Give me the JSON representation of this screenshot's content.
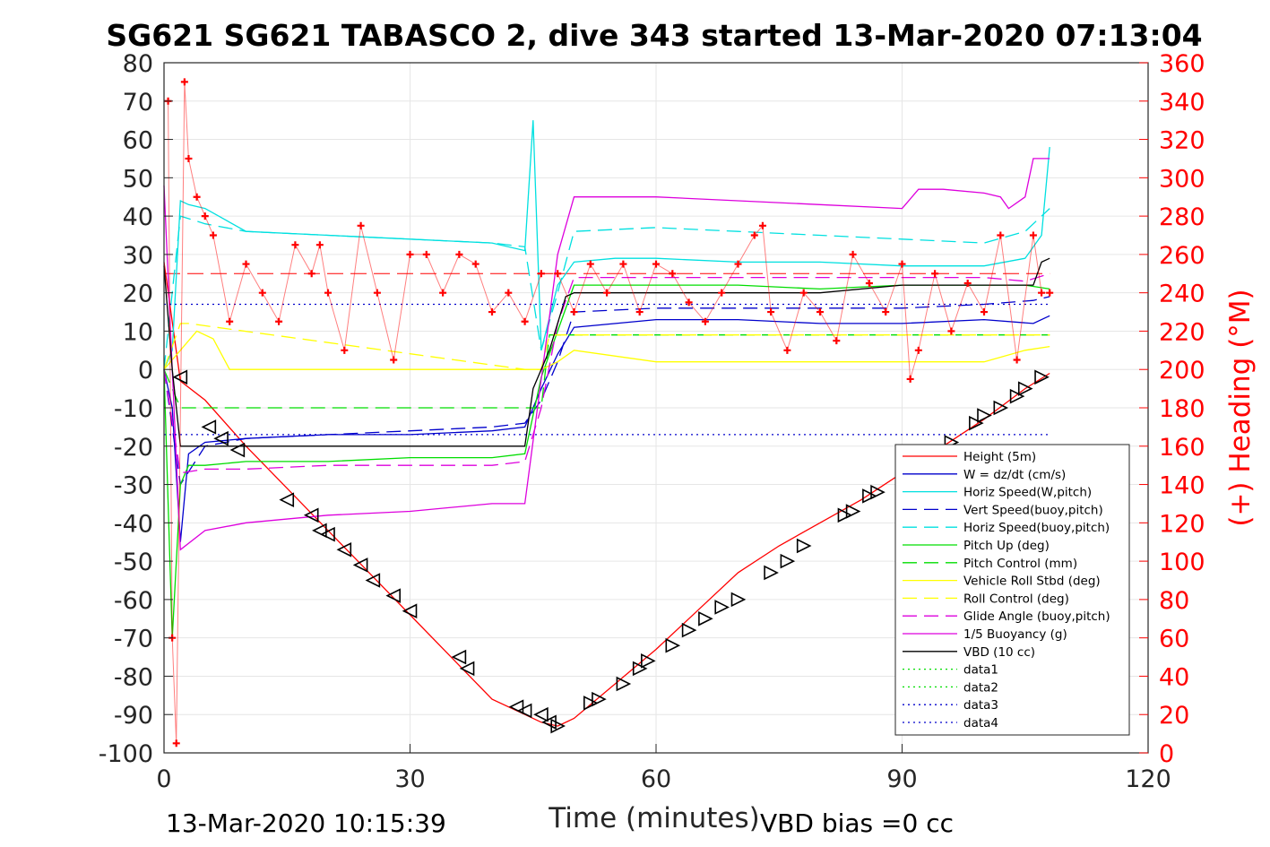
{
  "title": "SG621 SG621 TABASCO 2, dive 343 started 13-Mar-2020 07:13:04",
  "footer": {
    "timestamp": "13-Mar-2020 10:15:39",
    "vbd_bias": "VBD bias =0 cc"
  },
  "colors": {
    "axis": "#262626",
    "grid": "#e6e6e6",
    "heading": "#ff0000"
  },
  "chart_data": {
    "type": "line",
    "xlabel": "Time (minutes)",
    "ylabel": "",
    "y2label": "(+) Heading (°M)",
    "xlim": [
      0,
      120
    ],
    "ylim": [
      -100,
      80
    ],
    "y2lim": [
      0,
      360
    ],
    "xticks": [
      0,
      30,
      60,
      90,
      120
    ],
    "yticks": [
      -100,
      -90,
      -80,
      -70,
      -60,
      -50,
      -40,
      -30,
      -20,
      -10,
      0,
      10,
      20,
      30,
      40,
      50,
      60,
      70,
      80
    ],
    "y2ticks": [
      0,
      20,
      40,
      60,
      80,
      100,
      120,
      140,
      160,
      180,
      200,
      220,
      240,
      260,
      280,
      300,
      320,
      340,
      360
    ],
    "grid": true,
    "legend_position": "bottom-right",
    "series": [
      {
        "name": "Height (5m)",
        "color": "#ff0000",
        "style": "solid",
        "x": [
          0,
          2,
          5,
          10,
          15,
          20,
          25,
          30,
          35,
          40,
          44,
          46,
          48,
          50,
          55,
          60,
          65,
          70,
          75,
          80,
          85,
          90,
          95,
          100,
          105,
          108
        ],
        "y": [
          28,
          -3,
          -8,
          -20,
          -31,
          -42,
          -53,
          -64,
          -75,
          -86,
          -90,
          -92,
          -93,
          -91,
          -82,
          -73,
          -63,
          -53,
          -46,
          -40,
          -34,
          -27,
          -20,
          -13,
          -5,
          -1
        ]
      },
      {
        "name": "W = dz/dt (cm/s)",
        "color": "#0000cc",
        "style": "solid",
        "x": [
          0,
          1,
          2,
          3,
          5,
          10,
          20,
          30,
          40,
          44,
          46,
          48,
          50,
          60,
          70,
          80,
          90,
          100,
          106,
          108
        ],
        "y": [
          0,
          -10,
          -45,
          -22,
          -19,
          -18,
          -17,
          -17,
          -16,
          -15,
          -5,
          4,
          11,
          13,
          13,
          12,
          12,
          13,
          12,
          14
        ]
      },
      {
        "name": "Horiz Speed(W,pitch)",
        "color": "#00e0e0",
        "style": "solid",
        "x": [
          0,
          1,
          2,
          3,
          5,
          10,
          20,
          30,
          40,
          44,
          45,
          46,
          48,
          50,
          55,
          60,
          70,
          80,
          90,
          100,
          105,
          107,
          108
        ],
        "y": [
          0,
          5,
          44,
          43,
          42,
          36,
          35,
          34,
          33,
          31,
          65,
          5,
          22,
          28,
          29,
          29,
          28,
          28,
          27,
          27,
          29,
          35,
          58
        ]
      },
      {
        "name": "Vert Speed(buoy,pitch)",
        "color": "#0000cc",
        "style": "dashed",
        "x": [
          0,
          2,
          5,
          10,
          20,
          30,
          40,
          44,
          46,
          48,
          50,
          60,
          70,
          80,
          90,
          100,
          106,
          108
        ],
        "y": [
          0,
          -30,
          -20,
          -18,
          -17,
          -16,
          -15,
          -14,
          -8,
          2,
          15,
          16,
          16,
          16,
          16,
          17,
          18,
          19
        ]
      },
      {
        "name": "Horiz Speed(buoy,pitch)",
        "color": "#00e0e0",
        "style": "dashed",
        "x": [
          0,
          2,
          5,
          10,
          20,
          30,
          40,
          44,
          46,
          48,
          50,
          60,
          70,
          80,
          90,
          100,
          105,
          108
        ],
        "y": [
          0,
          40,
          38,
          36,
          35,
          34,
          33,
          32,
          5,
          20,
          36,
          37,
          36,
          35,
          34,
          33,
          36,
          42
        ]
      },
      {
        "name": "Pitch Up (deg)",
        "color": "#00dd00",
        "style": "solid",
        "x": [
          0,
          1,
          2,
          3,
          5,
          10,
          20,
          30,
          40,
          44,
          46,
          48,
          50,
          60,
          70,
          80,
          90,
          100,
          105,
          108
        ],
        "y": [
          0,
          -70,
          -30,
          -25,
          -25,
          -24,
          -24,
          -23,
          -23,
          -22,
          -2,
          10,
          22,
          22,
          22,
          21,
          22,
          22,
          22,
          21
        ]
      },
      {
        "name": "Pitch Control (mm)",
        "color": "#00dd00",
        "style": "dashed",
        "x": [
          0,
          2,
          3,
          44,
          46,
          47,
          108
        ],
        "y": [
          0,
          -10,
          -10,
          -10,
          -10,
          9,
          9
        ]
      },
      {
        "name": "Vehicle Roll Stbd (deg)",
        "color": "#ffff00",
        "style": "solid",
        "x": [
          0,
          2,
          4,
          6,
          8,
          10,
          20,
          30,
          40,
          44,
          46,
          48,
          50,
          60,
          70,
          80,
          90,
          100,
          105,
          108
        ],
        "y": [
          0,
          5,
          10,
          8,
          0,
          0,
          0,
          0,
          0,
          0,
          0,
          2,
          5,
          2,
          2,
          2,
          2,
          2,
          5,
          6
        ]
      },
      {
        "name": "Roll Control (deg)",
        "color": "#ffff00",
        "style": "dashed",
        "x": [
          0,
          2,
          3,
          44,
          46,
          47,
          108
        ],
        "y": [
          0,
          12,
          12,
          0,
          0,
          9,
          9
        ]
      },
      {
        "name": "Glide Angle (buoy,pitch)",
        "color": "#dd00dd",
        "style": "dashed",
        "x": [
          0,
          2,
          5,
          10,
          20,
          30,
          40,
          44,
          46,
          48,
          50,
          60,
          70,
          80,
          90,
          100,
          105,
          108
        ],
        "y": [
          0,
          -27,
          -26,
          -26,
          -25,
          -25,
          -25,
          -24,
          -10,
          12,
          24,
          24,
          24,
          24,
          24,
          24,
          23,
          25
        ]
      },
      {
        "name": "1/5 Buoyancy (g)",
        "color": "#dd00dd",
        "style": "solid",
        "x": [
          0,
          1,
          2,
          5,
          10,
          20,
          30,
          40,
          44,
          48,
          50,
          55,
          60,
          70,
          80,
          90,
          92,
          95,
          100,
          102,
          103,
          105,
          106,
          108
        ],
        "y": [
          48,
          0,
          -47,
          -42,
          -40,
          -38,
          -37,
          -35,
          -35,
          30,
          45,
          45,
          45,
          44,
          43,
          42,
          47,
          47,
          46,
          45,
          42,
          45,
          55,
          55
        ]
      },
      {
        "name": "VBD (10 cc)",
        "color": "#000000",
        "style": "solid",
        "x": [
          0,
          1,
          2,
          3,
          44,
          45,
          47,
          49,
          50,
          60,
          80,
          90,
          100,
          106,
          107,
          108
        ],
        "y": [
          27,
          0,
          -20,
          -20,
          -20,
          -5,
          5,
          19,
          20,
          20,
          20,
          22,
          22,
          22,
          28,
          29
        ]
      },
      {
        "name": "data1",
        "color": "#00dd00",
        "style": "dotted",
        "x": [],
        "y": []
      },
      {
        "name": "data2",
        "color": "#00dd00",
        "style": "dotted",
        "x": [],
        "y": []
      },
      {
        "name": "data3",
        "color": "#0000cc",
        "style": "dotted",
        "x": [
          0,
          108
        ],
        "y": [
          17,
          17
        ]
      },
      {
        "name": "data4",
        "color": "#0000cc",
        "style": "dotted",
        "x": [
          0,
          108
        ],
        "y": [
          -17,
          -17
        ]
      }
    ],
    "heading_target": {
      "y2": 250,
      "color": "#ff0000",
      "x": [
        0,
        108
      ]
    },
    "heading": {
      "axis": "right",
      "marker": "+",
      "color": "#ff0000",
      "x": [
        0.5,
        1,
        1.5,
        2.5,
        3,
        4,
        5,
        6,
        8,
        10,
        12,
        14,
        16,
        18,
        19,
        20,
        22,
        24,
        26,
        28,
        30,
        32,
        34,
        36,
        38,
        40,
        42,
        44,
        46,
        48,
        50,
        52,
        54,
        56,
        58,
        60,
        62,
        64,
        66,
        68,
        70,
        72,
        73,
        74,
        76,
        78,
        80,
        82,
        84,
        86,
        88,
        90,
        91,
        92,
        94,
        96,
        98,
        100,
        102,
        104,
        106,
        107,
        108
      ],
      "y": [
        340,
        60,
        5,
        350,
        310,
        290,
        280,
        270,
        225,
        255,
        240,
        225,
        265,
        250,
        265,
        240,
        210,
        275,
        240,
        205,
        260,
        260,
        240,
        260,
        255,
        230,
        240,
        225,
        250,
        250,
        230,
        255,
        240,
        255,
        230,
        255,
        250,
        235,
        225,
        240,
        255,
        270,
        275,
        230,
        210,
        240,
        230,
        215,
        260,
        245,
        230,
        255,
        195,
        210,
        250,
        220,
        245,
        230,
        270,
        205,
        270,
        240,
        240
      ]
    },
    "depth_markers": {
      "marker": "triangle",
      "x": [
        2,
        5.5,
        7,
        9,
        15,
        18,
        19,
        20,
        22,
        24,
        25.5,
        28,
        30,
        36,
        37,
        43,
        44,
        46,
        47,
        48,
        52,
        53,
        56,
        58,
        59,
        62,
        64,
        66,
        68,
        70,
        74,
        76,
        78,
        83,
        84,
        86,
        87,
        90,
        96,
        99,
        100,
        102,
        104,
        105,
        107
      ],
      "y": [
        -2,
        -15,
        -18,
        -21,
        -34,
        -38,
        -42,
        -43,
        -47,
        -51,
        -55,
        -59,
        -63,
        -75,
        -78,
        -88,
        -89,
        -90,
        -92,
        -93,
        -87,
        -86,
        -82,
        -78,
        -76,
        -72,
        -68,
        -65,
        -62,
        -60,
        -53,
        -50,
        -46,
        -38,
        -37,
        -33,
        -32,
        -27,
        -19,
        -14,
        -12,
        -10,
        -7,
        -5,
        -2
      ]
    }
  }
}
